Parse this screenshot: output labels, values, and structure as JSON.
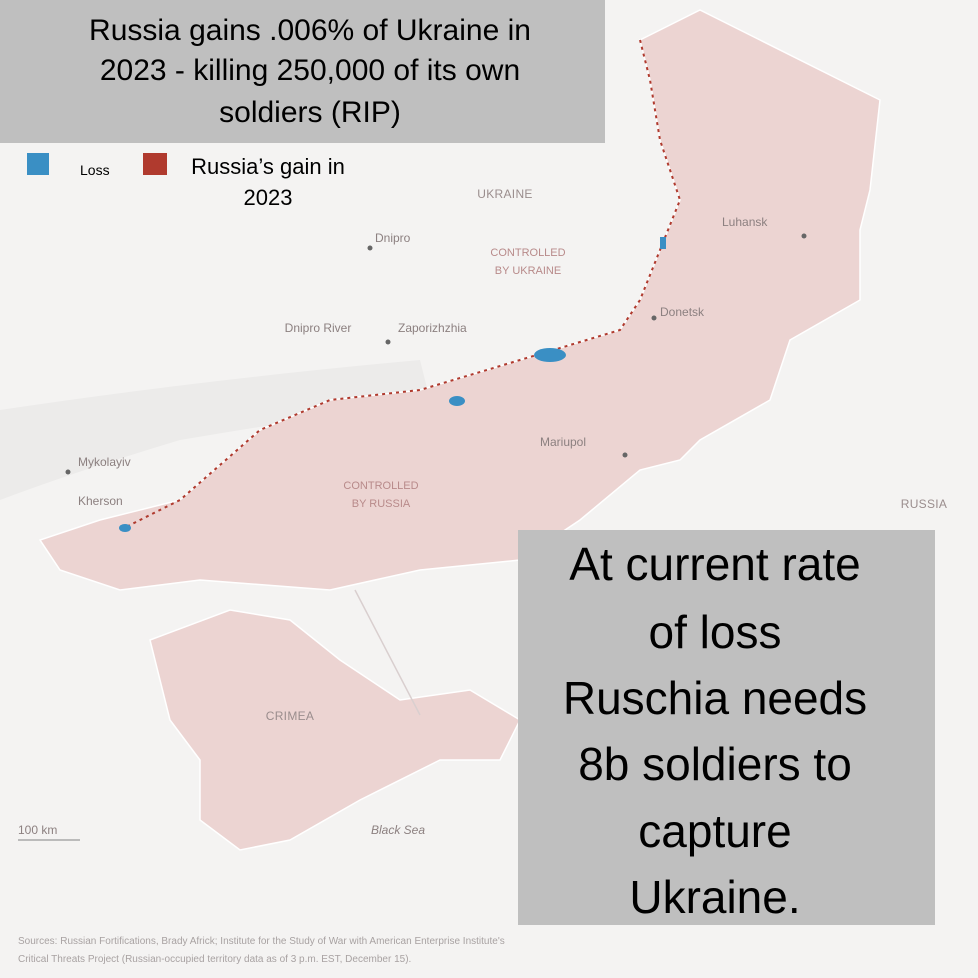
{
  "title": {
    "lines": [
      "Russia gains .006% of Ukraine in",
      "2023 - killing 250,000 of its own",
      "soldiers (RIP)"
    ]
  },
  "legend": {
    "loss": "Loss",
    "gain": {
      "lines": [
        "Russia’s gain in",
        "2023"
      ]
    }
  },
  "map": {
    "labels": {
      "ukraine": "UKRAINE",
      "controlled_ukraine": [
        "CONTROLLED",
        "BY UKRAINE"
      ],
      "controlled_russia": [
        "CONTROLLED",
        "BY RUSSIA"
      ],
      "russia": "RUSSIA",
      "crimea": "CRIMEA",
      "black_sea": "Black Sea",
      "dnipro_river": "Dnipro River",
      "scale": "100 km"
    },
    "cities": [
      "Dnipro",
      "Luhansk",
      "Donetsk",
      "Zaporizhzhia",
      "Mariupol",
      "Mykolayiv",
      "Kherson"
    ]
  },
  "annotation": {
    "lines": [
      "At current rate",
      "of loss",
      "Ruschia needs",
      "8b soldiers to",
      "capture",
      "Ukraine."
    ]
  },
  "sources": {
    "lines": [
      "Sources: Russian Fortifications, Brady Africk; Institute for the Study of War with American Enterprise Institute's",
      "Critical Threats Project (Russian-occupied territory data as of 3 p.m. EST, December 15)."
    ]
  }
}
